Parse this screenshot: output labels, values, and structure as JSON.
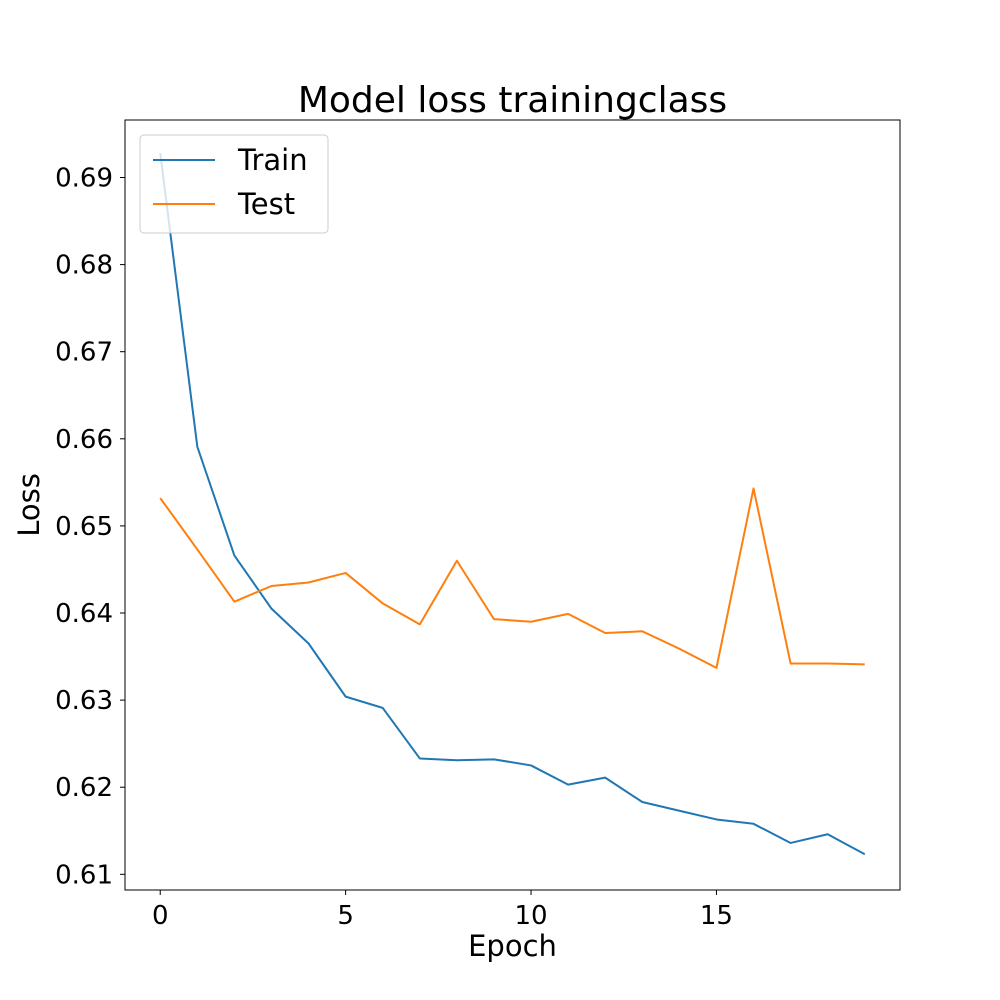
{
  "chart_data": {
    "type": "line",
    "title": "Model loss trainingclass",
    "xlabel": "Epoch",
    "ylabel": "Loss",
    "xlim": [
      -0.95,
      19.95
    ],
    "ylim": [
      0.6082,
      0.6966
    ],
    "xticks": [
      0,
      5,
      10,
      15
    ],
    "xtick_labels": [
      "0",
      "5",
      "10",
      "15"
    ],
    "yticks": [
      0.61,
      0.62,
      0.63,
      0.64,
      0.65,
      0.66,
      0.67,
      0.68,
      0.69
    ],
    "ytick_labels": [
      "0.61",
      "0.62",
      "0.63",
      "0.64",
      "0.65",
      "0.66",
      "0.67",
      "0.68",
      "0.69"
    ],
    "grid": false,
    "legend_position": "top-left",
    "x": [
      0,
      1,
      2,
      3,
      4,
      5,
      6,
      7,
      8,
      9,
      10,
      11,
      12,
      13,
      14,
      15,
      16,
      17,
      18,
      19
    ],
    "series": [
      {
        "name": "Train",
        "color": "#1f77b4",
        "values": [
          0.6928,
          0.6591,
          0.6466,
          0.6405,
          0.6365,
          0.6304,
          0.6291,
          0.6233,
          0.6231,
          0.6232,
          0.6225,
          0.6203,
          0.6211,
          0.6183,
          0.6173,
          0.6163,
          0.6158,
          0.6136,
          0.6146,
          0.6123
        ]
      },
      {
        "name": "Test",
        "color": "#ff7f0e",
        "values": [
          0.6532,
          0.6473,
          0.6413,
          0.6431,
          0.6435,
          0.6446,
          0.6411,
          0.6387,
          0.646,
          0.6393,
          0.639,
          0.6399,
          0.6377,
          0.6379,
          0.6359,
          0.6337,
          0.6543,
          0.6342,
          0.6342,
          0.6341
        ]
      }
    ]
  }
}
